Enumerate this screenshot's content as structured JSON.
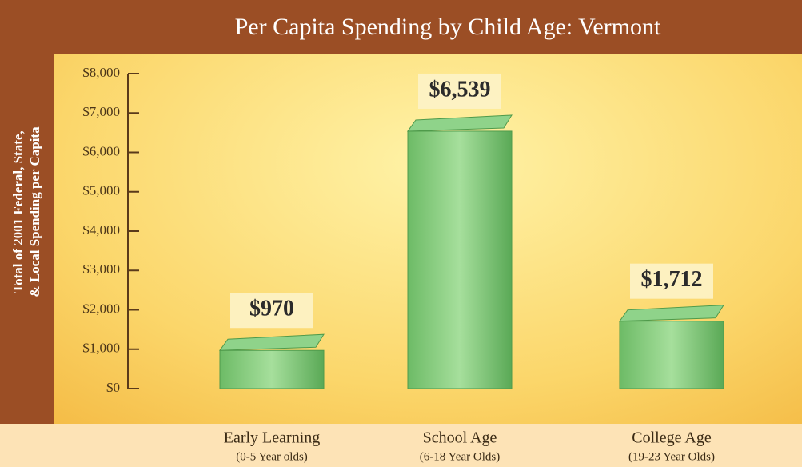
{
  "chart_data": {
    "type": "bar",
    "title": "Per Capita Spending by Child Age: Vermont",
    "ylabel": [
      "Total of 2001 Federal, State,",
      "& Local Spending per Capita"
    ],
    "categories": [
      "Early Learning",
      "School Age",
      "College Age"
    ],
    "category_subtitles": [
      "(0-5 Year olds)",
      "(6-18 Year Olds)",
      "(19-23 Year Olds)"
    ],
    "values": [
      970,
      6539,
      1712
    ],
    "value_labels": [
      "$970",
      "$6,539",
      "$1,712"
    ],
    "color": "#8fd38a",
    "ylim": [
      0,
      8000
    ],
    "yticks": [
      {
        "value": 0,
        "label": "$0"
      },
      {
        "value": 1000,
        "label": "$1,000"
      },
      {
        "value": 2000,
        "label": "$2,000"
      },
      {
        "value": 3000,
        "label": "$3,000"
      },
      {
        "value": 4000,
        "label": "$4,000"
      },
      {
        "value": 5000,
        "label": "$5,000"
      },
      {
        "value": 6000,
        "label": "$6,000"
      },
      {
        "value": 7000,
        "label": "$7,000"
      },
      {
        "value": 8000,
        "label": "$8,000"
      }
    ]
  }
}
